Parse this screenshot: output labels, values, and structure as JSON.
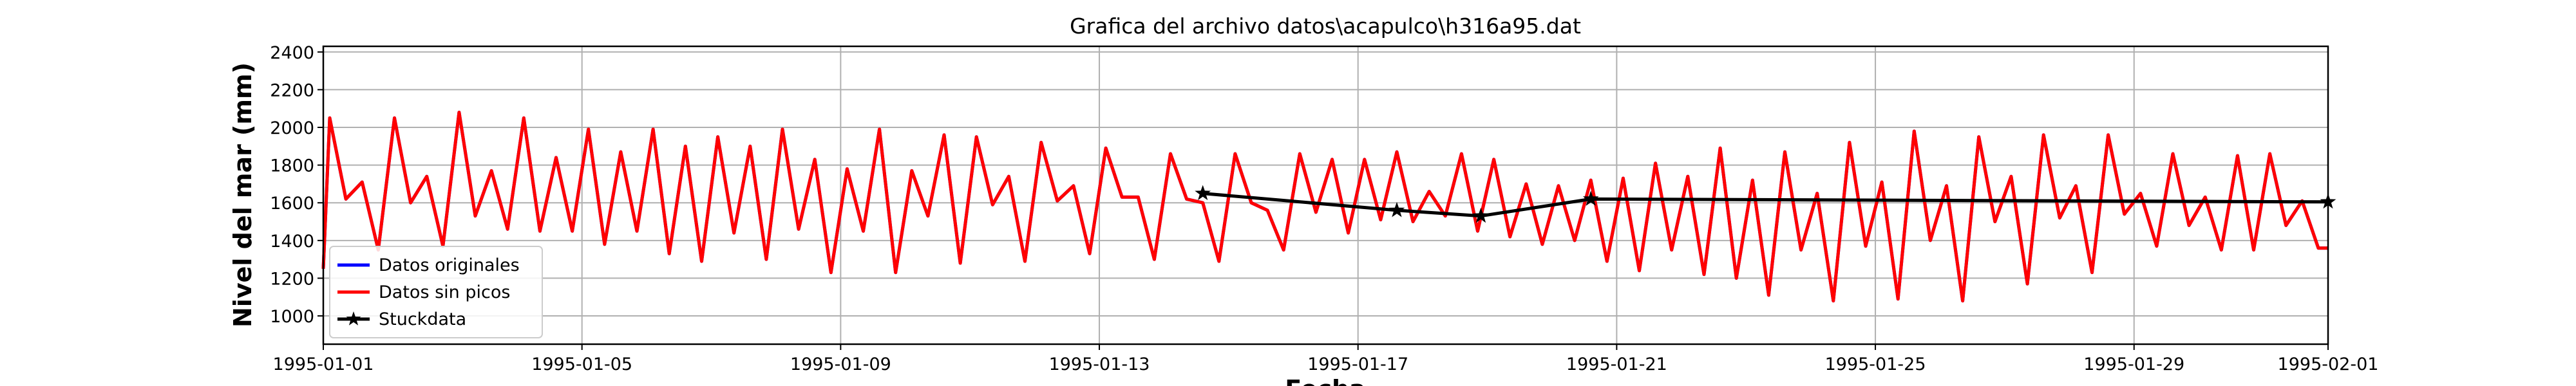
{
  "chart_data": {
    "type": "line",
    "title": "Grafica del archivo datos\\acapulco\\h316a95.dat",
    "xlabel": "Fecha",
    "ylabel": "Nivel del mar (mm)",
    "x": [
      0,
      0.1,
      0.35,
      0.6,
      0.85,
      1.1,
      1.35,
      1.6,
      1.85,
      2.1,
      2.35,
      2.6,
      2.85,
      3.1,
      3.35,
      3.6,
      3.85,
      4.1,
      4.35,
      4.6,
      4.85,
      5.1,
      5.35,
      5.6,
      5.85,
      6.1,
      6.35,
      6.6,
      6.85,
      7.1,
      7.35,
      7.6,
      7.85,
      8.1,
      8.35,
      8.6,
      8.85,
      9.1,
      9.35,
      9.6,
      9.85,
      10.1,
      10.35,
      10.6,
      10.85,
      11.1,
      11.35,
      11.6,
      11.85,
      12.1,
      12.35,
      12.6,
      12.85,
      13.1,
      13.35,
      13.6,
      13.85,
      14.1,
      14.35,
      14.6,
      14.85,
      15.1,
      15.35,
      15.6,
      15.85,
      16.1,
      16.35,
      16.6,
      16.85,
      17.1,
      17.35,
      17.6,
      17.85,
      18.1,
      18.35,
      18.6,
      18.85,
      19.1,
      19.35,
      19.6,
      19.85,
      20.1,
      20.35,
      20.6,
      20.85,
      21.1,
      21.35,
      21.6,
      21.85,
      22.1,
      22.35,
      22.6,
      22.85,
      23.1,
      23.35,
      23.6,
      23.85,
      24.1,
      24.35,
      24.6,
      24.85,
      25.1,
      25.35,
      25.6,
      25.85,
      26.1,
      26.35,
      26.6,
      26.85,
      27.1,
      27.35,
      27.6,
      27.85,
      28.1,
      28.35,
      28.6,
      28.85,
      29.1,
      29.35,
      29.6,
      29.85,
      30.1,
      30.35,
      30.6,
      30.85,
      31
    ],
    "series": [
      {
        "name": "Datos originales",
        "color": "#0000ff",
        "values": [
          1250,
          2050,
          1620,
          1710,
          1350,
          2050,
          1600,
          1740,
          1370,
          2080,
          1530,
          1770,
          1460,
          2050,
          1450,
          1840,
          1450,
          1990,
          1380,
          1870,
          1450,
          1990,
          1330,
          1900,
          1290,
          1950,
          1440,
          1900,
          1300,
          1990,
          1460,
          1830,
          1230,
          1780,
          1450,
          1990,
          1230,
          1770,
          1530,
          1960,
          1280,
          1950,
          1590,
          1740,
          1290,
          1920,
          1610,
          1690,
          1330,
          1890,
          1630,
          1630,
          1300,
          1860,
          1620,
          1600,
          1290,
          1860,
          1600,
          1560,
          1350,
          1860,
          1550,
          1830,
          1440,
          1830,
          1510,
          1870,
          1500,
          1660,
          1530,
          1860,
          1450,
          1830,
          1420,
          1700,
          1380,
          1690,
          1400,
          1720,
          1290,
          1730,
          1240,
          1810,
          1350,
          1740,
          1220,
          1890,
          1200,
          1720,
          1110,
          1870,
          1350,
          1650,
          1080,
          1920,
          1370,
          1710,
          1090,
          1980,
          1400,
          1690,
          1080,
          1950,
          1500,
          1740,
          1170,
          1960,
          1520,
          1690,
          1230,
          1960,
          1540,
          1650,
          1370,
          1860,
          1480,
          1630,
          1350,
          1850,
          1350,
          1860,
          1480,
          1610,
          1360,
          1360
        ]
      },
      {
        "name": "Datos sin picos",
        "color": "#ff0000",
        "values": [
          1250,
          2050,
          1620,
          1710,
          1350,
          2050,
          1600,
          1740,
          1370,
          2080,
          1530,
          1770,
          1460,
          2050,
          1450,
          1840,
          1450,
          1990,
          1380,
          1870,
          1450,
          1990,
          1330,
          1900,
          1290,
          1950,
          1440,
          1900,
          1300,
          1990,
          1460,
          1830,
          1230,
          1780,
          1450,
          1990,
          1230,
          1770,
          1530,
          1960,
          1280,
          1950,
          1590,
          1740,
          1290,
          1920,
          1610,
          1690,
          1330,
          1890,
          1630,
          1630,
          1300,
          1860,
          1620,
          1600,
          1290,
          1860,
          1600,
          1560,
          1350,
          1860,
          1550,
          1830,
          1440,
          1830,
          1510,
          1870,
          1500,
          1660,
          1530,
          1860,
          1450,
          1830,
          1420,
          1700,
          1380,
          1690,
          1400,
          1720,
          1290,
          1730,
          1240,
          1810,
          1350,
          1740,
          1220,
          1890,
          1200,
          1720,
          1110,
          1870,
          1350,
          1650,
          1080,
          1920,
          1370,
          1710,
          1090,
          1980,
          1400,
          1690,
          1080,
          1950,
          1500,
          1740,
          1170,
          1960,
          1520,
          1690,
          1230,
          1960,
          1540,
          1650,
          1370,
          1860,
          1480,
          1630,
          1350,
          1850,
          1350,
          1860,
          1480,
          1610,
          1360,
          1360
        ]
      },
      {
        "name": "Stuckdata",
        "color": "#000000",
        "marker": "star",
        "x": [
          13.6,
          16.6,
          17.9,
          19.6,
          31
        ],
        "values": [
          1650,
          1560,
          1530,
          1620,
          1605
        ]
      }
    ],
    "xlim": [
      0,
      31
    ],
    "xticks": [
      {
        "value": 0,
        "label": "1995-01-01"
      },
      {
        "value": 4,
        "label": "1995-01-05"
      },
      {
        "value": 8,
        "label": "1995-01-09"
      },
      {
        "value": 12,
        "label": "1995-01-13"
      },
      {
        "value": 16,
        "label": "1995-01-17"
      },
      {
        "value": 20,
        "label": "1995-01-21"
      },
      {
        "value": 24,
        "label": "1995-01-25"
      },
      {
        "value": 28,
        "label": "1995-01-29"
      },
      {
        "value": 31,
        "label": "1995-02-01"
      }
    ],
    "ylim": [
      850,
      2430
    ],
    "yticks": [
      1000,
      1200,
      1400,
      1600,
      1800,
      2000,
      2200,
      2400
    ],
    "grid": true,
    "legend": "lower left"
  }
}
